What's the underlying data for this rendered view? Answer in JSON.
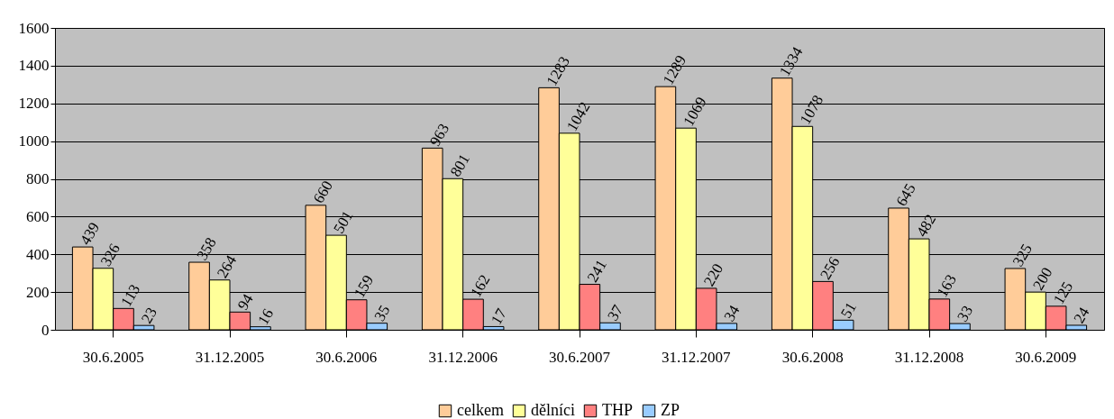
{
  "chart_data": {
    "type": "bar",
    "categories": [
      "30.6.2005",
      "31.12.2005",
      "30.6.2006",
      "31.12.2006",
      "30.6.2007",
      "31.12.2007",
      "30.6.2008",
      "31.12.2008",
      "30.6.2009"
    ],
    "series": [
      {
        "name": "celkem",
        "color": "#ffcc99",
        "values": [
          439,
          358,
          660,
          963,
          1283,
          1289,
          1334,
          645,
          325
        ]
      },
      {
        "name": "dělníci",
        "color": "#ffff99",
        "values": [
          326,
          264,
          501,
          801,
          1042,
          1069,
          1078,
          482,
          200
        ]
      },
      {
        "name": "THP",
        "color": "#ff8080",
        "values": [
          113,
          94,
          159,
          162,
          241,
          220,
          256,
          163,
          125
        ]
      },
      {
        "name": "ZP",
        "color": "#99ccff",
        "values": [
          23,
          16,
          35,
          17,
          37,
          34,
          51,
          33,
          24
        ]
      }
    ],
    "ylim": [
      0,
      1600
    ],
    "yticks": [
      0,
      200,
      400,
      600,
      800,
      1000,
      1200,
      1400,
      1600
    ],
    "grid": "y",
    "legend": "bottom",
    "data_labels": true
  }
}
